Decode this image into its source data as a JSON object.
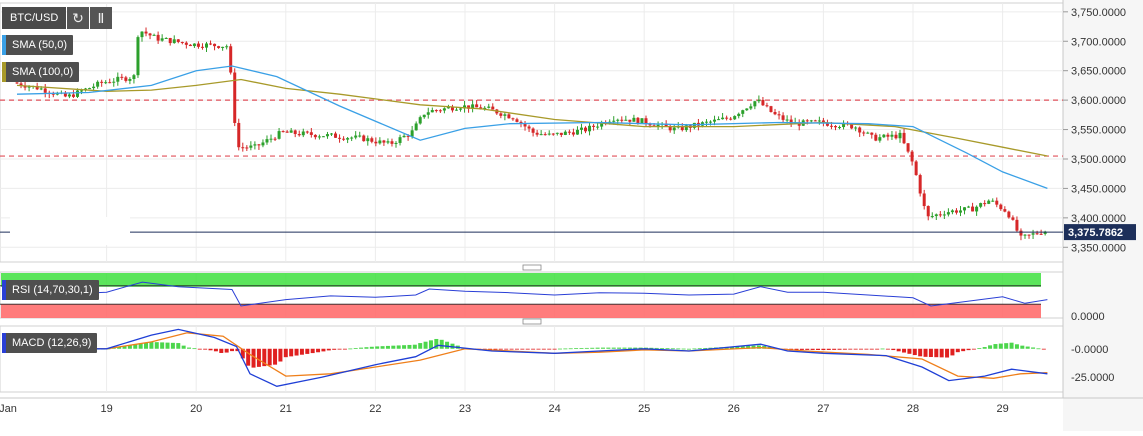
{
  "toolbar": {
    "symbol": "BTC/USD",
    "refresh_icon": "refresh-icon",
    "bars_icon": "bar-chart-icon"
  },
  "indicators": {
    "sma50": {
      "label": "SMA (50,0)",
      "color": "#3aa0e6"
    },
    "sma100": {
      "label": "SMA (100,0)",
      "color": "#a89a2a"
    },
    "rsi": {
      "label": "RSI (14,70,30,1)",
      "color": "#2a3fd6"
    },
    "macd": {
      "label": "MACD (12,26,9)",
      "color": "#2a3fd6"
    }
  },
  "colors": {
    "up": "#2ca02c",
    "down": "#d62728",
    "macd_line": "#1f3fd6",
    "signal_line": "#ef7f1a",
    "hist_up": "#4cd64c",
    "hist_down": "#e02020",
    "resistance": "#e0505a"
  },
  "chart_data": [
    {
      "type": "candlestick",
      "title": "BTC/USD",
      "x_ticks": [
        "Jan",
        "19",
        "20",
        "21",
        "22",
        "23",
        "24",
        "25",
        "26",
        "27",
        "28",
        "29"
      ],
      "y_ticks": [
        "3,750.0000",
        "3,700.0000",
        "3,650.0000",
        "3,600.0000",
        "3,550.0000",
        "3,500.0000",
        "3,450.0000",
        "3,400.0000",
        "3,350.0000"
      ],
      "ylim": [
        3325,
        3765
      ],
      "current_price": "3,375.7862",
      "horizontal_levels": [
        3600,
        3505
      ],
      "anchors": [
        {
          "t": 0,
          "p": 3630
        },
        {
          "t": 0.3,
          "p": 3620
        },
        {
          "t": 0.6,
          "p": 3605
        },
        {
          "t": 1.0,
          "p": 3630
        },
        {
          "t": 1.35,
          "p": 3640
        },
        {
          "t": 1.4,
          "p": 3720
        },
        {
          "t": 1.6,
          "p": 3705
        },
        {
          "t": 2.0,
          "p": 3695
        },
        {
          "t": 2.4,
          "p": 3692
        },
        {
          "t": 2.45,
          "p": 3610
        },
        {
          "t": 2.5,
          "p": 3520
        },
        {
          "t": 2.7,
          "p": 3520
        },
        {
          "t": 3.0,
          "p": 3545
        },
        {
          "t": 3.5,
          "p": 3540
        },
        {
          "t": 3.9,
          "p": 3535
        },
        {
          "t": 4.2,
          "p": 3525
        },
        {
          "t": 4.45,
          "p": 3545
        },
        {
          "t": 4.6,
          "p": 3580
        },
        {
          "t": 5.0,
          "p": 3590
        },
        {
          "t": 5.3,
          "p": 3585
        },
        {
          "t": 5.6,
          "p": 3570
        },
        {
          "t": 5.8,
          "p": 3545
        },
        {
          "t": 6.0,
          "p": 3540
        },
        {
          "t": 6.4,
          "p": 3550
        },
        {
          "t": 6.7,
          "p": 3570
        },
        {
          "t": 7.0,
          "p": 3565
        },
        {
          "t": 7.4,
          "p": 3550
        },
        {
          "t": 7.7,
          "p": 3560
        },
        {
          "t": 8.0,
          "p": 3570
        },
        {
          "t": 8.3,
          "p": 3600
        },
        {
          "t": 8.5,
          "p": 3575
        },
        {
          "t": 8.7,
          "p": 3560
        },
        {
          "t": 9.0,
          "p": 3562
        },
        {
          "t": 9.4,
          "p": 3555
        },
        {
          "t": 9.6,
          "p": 3535
        },
        {
          "t": 9.9,
          "p": 3540
        },
        {
          "t": 10.05,
          "p": 3490
        },
        {
          "t": 10.2,
          "p": 3400
        },
        {
          "t": 10.4,
          "p": 3410
        },
        {
          "t": 10.7,
          "p": 3415
        },
        {
          "t": 10.9,
          "p": 3430
        },
        {
          "t": 11.1,
          "p": 3410
        },
        {
          "t": 11.25,
          "p": 3365
        },
        {
          "t": 11.5,
          "p": 3378
        }
      ],
      "sma50": [
        {
          "t": 0,
          "p": 3610
        },
        {
          "t": 0.8,
          "p": 3613
        },
        {
          "t": 1.5,
          "p": 3625
        },
        {
          "t": 2.0,
          "p": 3650
        },
        {
          "t": 2.4,
          "p": 3658
        },
        {
          "t": 2.9,
          "p": 3640
        },
        {
          "t": 3.6,
          "p": 3590
        },
        {
          "t": 4.5,
          "p": 3532
        },
        {
          "t": 5.0,
          "p": 3552
        },
        {
          "t": 5.5,
          "p": 3560
        },
        {
          "t": 6.5,
          "p": 3562
        },
        {
          "t": 7.5,
          "p": 3558
        },
        {
          "t": 8.5,
          "p": 3562
        },
        {
          "t": 9.5,
          "p": 3560
        },
        {
          "t": 10.0,
          "p": 3555
        },
        {
          "t": 10.6,
          "p": 3510
        },
        {
          "t": 11.0,
          "p": 3478
        },
        {
          "t": 11.5,
          "p": 3450
        }
      ],
      "sma100": [
        {
          "t": 0,
          "p": 3625
        },
        {
          "t": 1.0,
          "p": 3615
        },
        {
          "t": 1.5,
          "p": 3617
        },
        {
          "t": 2.0,
          "p": 3625
        },
        {
          "t": 2.5,
          "p": 3635
        },
        {
          "t": 3.0,
          "p": 3620
        },
        {
          "t": 3.6,
          "p": 3610
        },
        {
          "t": 4.5,
          "p": 3592
        },
        {
          "t": 5.2,
          "p": 3585
        },
        {
          "t": 6.0,
          "p": 3567
        },
        {
          "t": 7.0,
          "p": 3555
        },
        {
          "t": 8.0,
          "p": 3555
        },
        {
          "t": 9.0,
          "p": 3562
        },
        {
          "t": 9.8,
          "p": 3555
        },
        {
          "t": 10.5,
          "p": 3535
        },
        {
          "t": 11.0,
          "p": 3520
        },
        {
          "t": 11.5,
          "p": 3505
        }
      ]
    },
    {
      "type": "line",
      "title": "RSI (14,70,30,1)",
      "y_ticks": [
        "0.0000"
      ],
      "ylim": [
        0,
        100
      ],
      "overbought": 70,
      "oversold": 30,
      "series": [
        {
          "t": 0,
          "v": 55
        },
        {
          "t": 0.5,
          "v": 52
        },
        {
          "t": 1.0,
          "v": 56
        },
        {
          "t": 1.4,
          "v": 78
        },
        {
          "t": 1.8,
          "v": 68
        },
        {
          "t": 2.4,
          "v": 62
        },
        {
          "t": 2.5,
          "v": 26
        },
        {
          "t": 3.0,
          "v": 40
        },
        {
          "t": 3.5,
          "v": 48
        },
        {
          "t": 4.0,
          "v": 45
        },
        {
          "t": 4.45,
          "v": 50
        },
        {
          "t": 4.6,
          "v": 63
        },
        {
          "t": 5.0,
          "v": 58
        },
        {
          "t": 5.5,
          "v": 55
        },
        {
          "t": 6.0,
          "v": 50
        },
        {
          "t": 6.5,
          "v": 55
        },
        {
          "t": 7.0,
          "v": 54
        },
        {
          "t": 7.5,
          "v": 50
        },
        {
          "t": 8.0,
          "v": 52
        },
        {
          "t": 8.3,
          "v": 68
        },
        {
          "t": 8.6,
          "v": 56
        },
        {
          "t": 9.0,
          "v": 56
        },
        {
          "t": 9.5,
          "v": 50
        },
        {
          "t": 10.0,
          "v": 44
        },
        {
          "t": 10.2,
          "v": 26
        },
        {
          "t": 10.6,
          "v": 36
        },
        {
          "t": 11.0,
          "v": 46
        },
        {
          "t": 11.25,
          "v": 32
        },
        {
          "t": 11.5,
          "v": 40
        }
      ]
    },
    {
      "type": "line",
      "title": "MACD (12,26,9)",
      "y_ticks": [
        "-0.0000",
        "-25.0000"
      ],
      "ylim": [
        -38,
        20
      ],
      "macd": [
        {
          "t": 0,
          "v": 0
        },
        {
          "t": 1.0,
          "v": 0
        },
        {
          "t": 1.5,
          "v": 12
        },
        {
          "t": 1.8,
          "v": 17
        },
        {
          "t": 2.2,
          "v": 10
        },
        {
          "t": 2.45,
          "v": 2
        },
        {
          "t": 2.6,
          "v": -22
        },
        {
          "t": 2.9,
          "v": -33
        },
        {
          "t": 3.4,
          "v": -25
        },
        {
          "t": 4.0,
          "v": -14
        },
        {
          "t": 4.45,
          "v": -7
        },
        {
          "t": 4.7,
          "v": 3
        },
        {
          "t": 5.3,
          "v": -2
        },
        {
          "t": 6.0,
          "v": -4
        },
        {
          "t": 6.5,
          "v": -2
        },
        {
          "t": 7.0,
          "v": 0
        },
        {
          "t": 7.5,
          "v": -2
        },
        {
          "t": 8.3,
          "v": 4
        },
        {
          "t": 8.6,
          "v": -2
        },
        {
          "t": 9.0,
          "v": -4
        },
        {
          "t": 9.7,
          "v": -6
        },
        {
          "t": 10.1,
          "v": -16
        },
        {
          "t": 10.4,
          "v": -28
        },
        {
          "t": 10.8,
          "v": -24
        },
        {
          "t": 11.1,
          "v": -18
        },
        {
          "t": 11.5,
          "v": -22
        }
      ],
      "signal": [
        {
          "t": 0,
          "v": 0
        },
        {
          "t": 1.0,
          "v": 0
        },
        {
          "t": 1.5,
          "v": 6
        },
        {
          "t": 1.9,
          "v": 14
        },
        {
          "t": 2.3,
          "v": 11
        },
        {
          "t": 2.6,
          "v": -5
        },
        {
          "t": 3.0,
          "v": -24
        },
        {
          "t": 3.5,
          "v": -22
        },
        {
          "t": 4.0,
          "v": -16
        },
        {
          "t": 4.5,
          "v": -10
        },
        {
          "t": 5.0,
          "v": 0
        },
        {
          "t": 5.5,
          "v": -2
        },
        {
          "t": 6.0,
          "v": -4
        },
        {
          "t": 6.5,
          "v": -3
        },
        {
          "t": 7.0,
          "v": -1
        },
        {
          "t": 7.5,
          "v": -2
        },
        {
          "t": 8.3,
          "v": 1
        },
        {
          "t": 8.8,
          "v": -2
        },
        {
          "t": 9.5,
          "v": -5
        },
        {
          "t": 10.1,
          "v": -9
        },
        {
          "t": 10.5,
          "v": -24
        },
        {
          "t": 10.9,
          "v": -26
        },
        {
          "t": 11.2,
          "v": -22
        },
        {
          "t": 11.5,
          "v": -21
        }
      ]
    }
  ]
}
